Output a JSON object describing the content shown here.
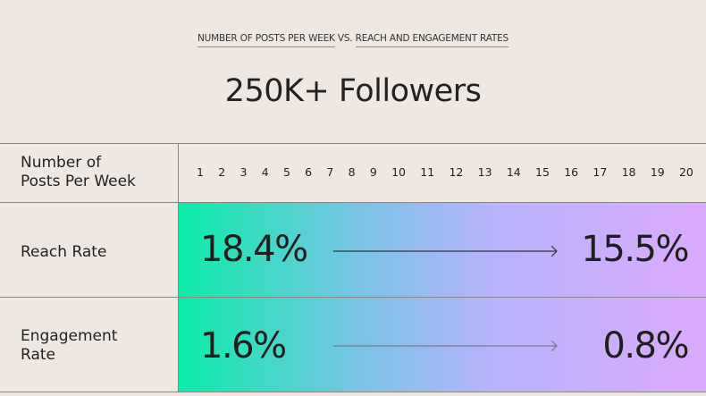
{
  "subtitle": {
    "part1": "NUMBER OF POSTS PER WEEK",
    "sep": " VS. ",
    "part2": "REACH AND ENGAGEMENT RATES"
  },
  "title": "250K+ Followers",
  "colors": {
    "background": "#efe8e2",
    "gradient_start": "#0ceca9",
    "gradient_end": "#dcaafc",
    "text": "#222222"
  },
  "chart_data": {
    "type": "table",
    "header_label": "Number of Posts Per Week",
    "header_lines": [
      "Number of",
      "Posts Per Week"
    ],
    "posts_per_week": [
      "1",
      "2",
      "3",
      "4",
      "5",
      "6",
      "7",
      "8",
      "9",
      "10",
      "11",
      "12",
      "13",
      "14",
      "15",
      "16",
      "17",
      "18",
      "19",
      "20"
    ],
    "rows": [
      {
        "label": "Reach Rate",
        "label_lines": [
          "Reach Rate"
        ],
        "start": "18.4%",
        "end": "15.5%"
      },
      {
        "label": "Engagement Rate",
        "label_lines": [
          "Engagement",
          "Rate"
        ],
        "start": "1.6%",
        "end": "0.8%"
      }
    ]
  }
}
